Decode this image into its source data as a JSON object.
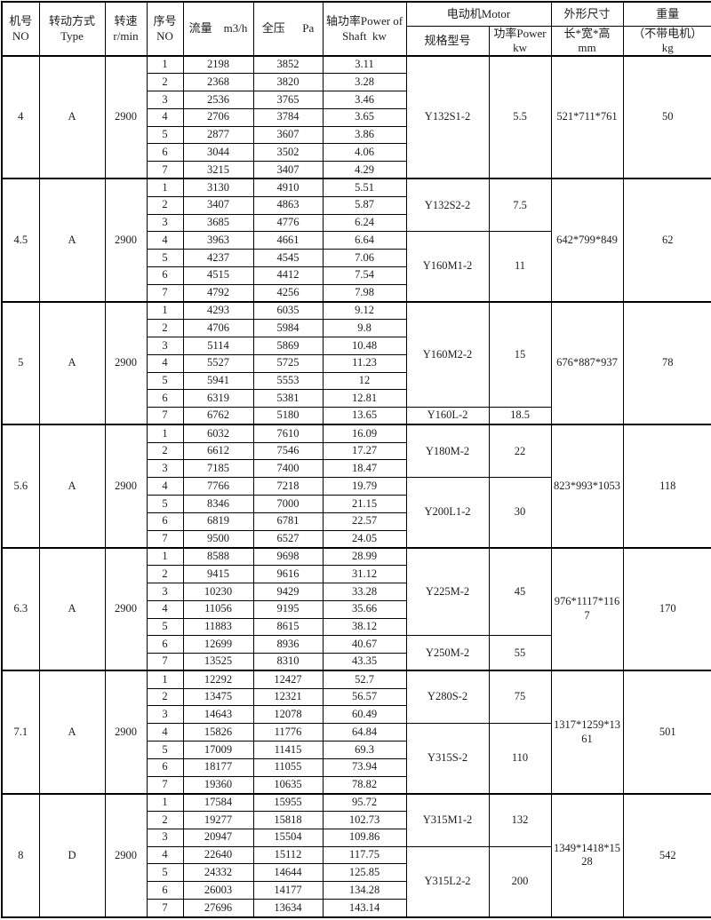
{
  "table": {
    "header": {
      "machine_no": "机号\nNO",
      "drive_type": "转动方式\nType",
      "speed": "转速\nr/min",
      "serial_no": "序号\nNO",
      "flow": "流量    m3/h",
      "pressure": "全压      Pa",
      "shaft_power": "轴功率Power of\nShaft  kw",
      "motor_group": "电动机Motor",
      "motor_model": "规格型号",
      "motor_power": "功率Power\nkw",
      "dimensions_group": "外形尺寸",
      "dimensions_sub": "长*宽*高\nmm",
      "weight_group": "重量",
      "weight_sub": "（不带电机）\nkg"
    },
    "sections": [
      {
        "machine_no": "4",
        "drive_type": "A",
        "speed": "2900",
        "rows": [
          [
            "1",
            "2198",
            "3852",
            "3.11"
          ],
          [
            "2",
            "2368",
            "3820",
            "3.28"
          ],
          [
            "3",
            "2536",
            "3765",
            "3.46"
          ],
          [
            "4",
            "2706",
            "3784",
            "3.65"
          ],
          [
            "5",
            "2877",
            "3607",
            "3.86"
          ],
          [
            "6",
            "3044",
            "3502",
            "4.06"
          ],
          [
            "7",
            "3215",
            "3407",
            "4.29"
          ]
        ],
        "motors": [
          {
            "model": "Y132S1-2",
            "power": "5.5",
            "row_span": 7
          }
        ],
        "dimensions": "521*711*761",
        "weight": "50"
      },
      {
        "machine_no": "4.5",
        "drive_type": "A",
        "speed": "2900",
        "rows": [
          [
            "1",
            "3130",
            "4910",
            "5.51"
          ],
          [
            "2",
            "3407",
            "4863",
            "5.87"
          ],
          [
            "3",
            "3685",
            "4776",
            "6.24"
          ],
          [
            "4",
            "3963",
            "4661",
            "6.64"
          ],
          [
            "5",
            "4237",
            "4545",
            "7.06"
          ],
          [
            "6",
            "4515",
            "4412",
            "7.54"
          ],
          [
            "7",
            "4792",
            "4256",
            "7.98"
          ]
        ],
        "motors": [
          {
            "model": "Y132S2-2",
            "power": "7.5",
            "row_span": 3
          },
          {
            "model": "Y160M1-2",
            "power": "11",
            "row_span": 4
          }
        ],
        "dimensions": "642*799*849",
        "weight": "62"
      },
      {
        "machine_no": "5",
        "drive_type": "A",
        "speed": "2900",
        "rows": [
          [
            "1",
            "4293",
            "6035",
            "9.12"
          ],
          [
            "2",
            "4706",
            "5984",
            "9.8"
          ],
          [
            "3",
            "5114",
            "5869",
            "10.48"
          ],
          [
            "4",
            "5527",
            "5725",
            "11.23"
          ],
          [
            "5",
            "5941",
            "5553",
            "12"
          ],
          [
            "6",
            "6319",
            "5381",
            "12.81"
          ],
          [
            "7",
            "6762",
            "5180",
            "13.65"
          ]
        ],
        "motors": [
          {
            "model": "Y160M2-2",
            "power": "15",
            "row_span": 6
          },
          {
            "model": "Y160L-2",
            "power": "18.5",
            "row_span": 1
          }
        ],
        "dimensions": "676*887*937",
        "weight": "78"
      },
      {
        "machine_no": "5.6",
        "drive_type": "A",
        "speed": "2900",
        "rows": [
          [
            "1",
            "6032",
            "7610",
            "16.09"
          ],
          [
            "2",
            "6612",
            "7546",
            "17.27"
          ],
          [
            "3",
            "7185",
            "7400",
            "18.47"
          ],
          [
            "4",
            "7766",
            "7218",
            "19.79"
          ],
          [
            "5",
            "8346",
            "7000",
            "21.15"
          ],
          [
            "6",
            "6819",
            "6781",
            "22.57"
          ],
          [
            "7",
            "9500",
            "6527",
            "24.05"
          ]
        ],
        "motors": [
          {
            "model": "Y180M-2",
            "power": "22",
            "row_span": 3
          },
          {
            "model": "Y200L1-2",
            "power": "30",
            "row_span": 4
          }
        ],
        "dimensions": "823*993*1053",
        "weight": "118"
      },
      {
        "machine_no": "6.3",
        "drive_type": "A",
        "speed": "2900",
        "rows": [
          [
            "1",
            "8588",
            "9698",
            "28.99"
          ],
          [
            "2",
            "9415",
            "9616",
            "31.12"
          ],
          [
            "3",
            "10230",
            "9429",
            "33.28"
          ],
          [
            "4",
            "11056",
            "9195",
            "35.66"
          ],
          [
            "5",
            "11883",
            "8615",
            "38.12"
          ],
          [
            "6",
            "12699",
            "8936",
            "40.67"
          ],
          [
            "7",
            "13525",
            "8310",
            "43.35"
          ]
        ],
        "motors": [
          {
            "model": "Y225M-2",
            "power": "45",
            "row_span": 5
          },
          {
            "model": "Y250M-2",
            "power": "55",
            "row_span": 2
          }
        ],
        "dimensions": "976*1117*1167",
        "weight": "170"
      },
      {
        "machine_no": "7.1",
        "drive_type": "A",
        "speed": "2900",
        "rows": [
          [
            "1",
            "12292",
            "12427",
            "52.7"
          ],
          [
            "2",
            "13475",
            "12321",
            "56.57"
          ],
          [
            "3",
            "14643",
            "12078",
            "60.49"
          ],
          [
            "4",
            "15826",
            "11776",
            "64.84"
          ],
          [
            "5",
            "17009",
            "11415",
            "69.3"
          ],
          [
            "6",
            "18177",
            "11055",
            "73.94"
          ],
          [
            "7",
            "19360",
            "10635",
            "78.82"
          ]
        ],
        "motors": [
          {
            "model": "Y280S-2",
            "power": "75",
            "row_span": 3
          },
          {
            "model": "Y315S-2",
            "power": "110",
            "row_span": 4
          }
        ],
        "dimensions": "1317*1259*1361",
        "weight": "501"
      },
      {
        "machine_no": "8",
        "drive_type": "D",
        "speed": "2900",
        "rows": [
          [
            "1",
            "17584",
            "15955",
            "95.72"
          ],
          [
            "2",
            "19277",
            "15818",
            "102.73"
          ],
          [
            "3",
            "20947",
            "15504",
            "109.86"
          ],
          [
            "4",
            "22640",
            "15112",
            "117.75"
          ],
          [
            "5",
            "24332",
            "14644",
            "125.85"
          ],
          [
            "6",
            "26003",
            "14177",
            "134.28"
          ],
          [
            "7",
            "27696",
            "13634",
            "143.14"
          ]
        ],
        "motors": [
          {
            "model": "Y315M1-2",
            "power": "132",
            "row_span": 3
          },
          {
            "model": "Y315L2-2",
            "power": "200",
            "row_span": 4
          }
        ],
        "dimensions": "1349*1418*1528",
        "weight": "542"
      }
    ]
  }
}
